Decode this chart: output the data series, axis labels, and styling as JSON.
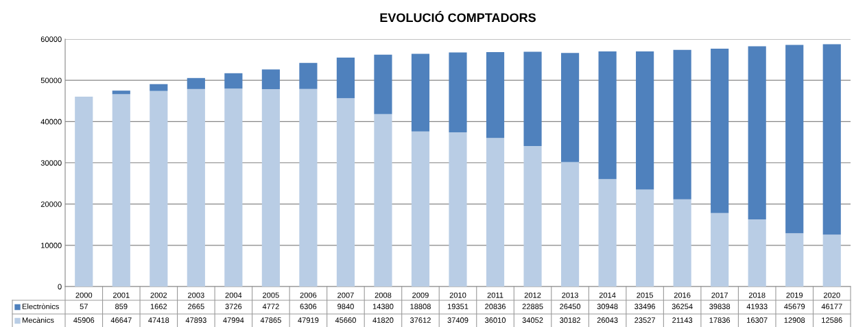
{
  "chart_data": {
    "type": "bar",
    "title": "EVOLUCIÓ COMPTADORS",
    "stacked": true,
    "categories": [
      "2000",
      "2001",
      "2002",
      "2003",
      "2004",
      "2005",
      "2006",
      "2007",
      "2008",
      "2009",
      "2010",
      "2011",
      "2012",
      "2013",
      "2014",
      "2015",
      "2016",
      "2017",
      "2018",
      "2019",
      "2020"
    ],
    "series": [
      {
        "name": "Mecànics",
        "color": "#b9cde5",
        "values": [
          45906,
          46647,
          47418,
          47893,
          47994,
          47865,
          47919,
          45660,
          41820,
          37612,
          37409,
          36010,
          34052,
          30182,
          26043,
          23527,
          21143,
          17836,
          16307,
          12908,
          12586
        ]
      },
      {
        "name": "Electrònics",
        "color": "#4f81bd",
        "values": [
          57,
          859,
          1662,
          2665,
          3726,
          4772,
          6306,
          9840,
          14380,
          18808,
          19351,
          20836,
          22885,
          26450,
          30948,
          33496,
          36254,
          39838,
          41933,
          45679,
          46177
        ]
      }
    ],
    "ylim": [
      0,
      60000
    ],
    "yticks": [
      0,
      10000,
      20000,
      30000,
      40000,
      50000,
      60000
    ],
    "grid": "y",
    "legend": "bottom",
    "data_labels": true
  }
}
